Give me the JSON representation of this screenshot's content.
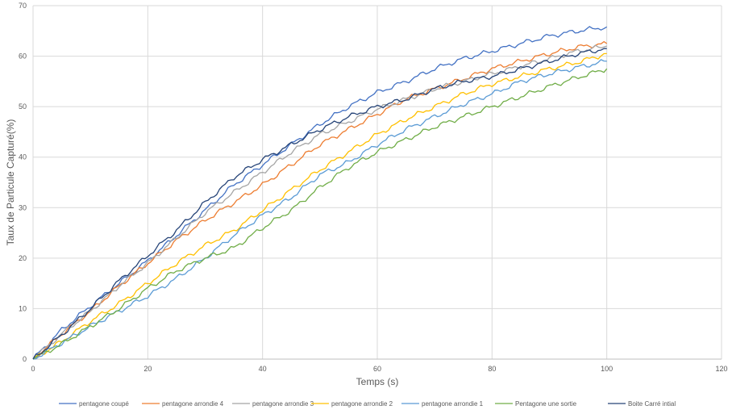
{
  "chart_data": {
    "type": "line",
    "title": "",
    "xlabel": "Temps (s)",
    "ylabel": "Taux de Particule Capturé(%)",
    "xlim": [
      0,
      120
    ],
    "ylim": [
      0,
      70
    ],
    "xticks": [
      0,
      20,
      40,
      60,
      80,
      100,
      120
    ],
    "yticks": [
      0,
      10,
      20,
      30,
      40,
      50,
      60,
      70
    ],
    "grid": true,
    "legend_position": "bottom",
    "x": [
      0,
      5,
      10,
      15,
      20,
      25,
      30,
      35,
      40,
      45,
      50,
      55,
      60,
      65,
      70,
      75,
      80,
      85,
      90,
      95,
      100
    ],
    "series": [
      {
        "name": "pentagone coupé",
        "color": "#4472c4",
        "values": [
          0,
          5.8,
          10.5,
          15,
          19.5,
          24.5,
          29.5,
          34.5,
          38.5,
          42.5,
          46.5,
          50,
          52.8,
          55,
          57.5,
          59.5,
          61,
          62.5,
          64,
          65,
          65.8
        ]
      },
      {
        "name": "pentagone  arrondie 4",
        "color": "#ed7d31",
        "values": [
          0,
          5,
          9.5,
          14.5,
          19,
          23.5,
          27.5,
          31,
          34.5,
          38.5,
          42.5,
          45.5,
          48.5,
          51.5,
          53.5,
          55.5,
          57.5,
          59,
          60.5,
          61.8,
          62.5
        ]
      },
      {
        "name": "pentagone arrondie 3",
        "color": "#a5a5a5",
        "values": [
          0,
          5,
          9.5,
          14.5,
          19,
          24,
          29,
          33,
          37,
          41,
          44.5,
          47,
          49.5,
          51.5,
          53.5,
          55,
          56.5,
          58,
          59.5,
          61,
          62
        ]
      },
      {
        "name": "pentagone arrondie 2",
        "color": "#ffc000",
        "values": [
          0,
          3.5,
          7.5,
          11,
          15,
          19,
          22.5,
          25.5,
          29.5,
          33.5,
          37.5,
          41,
          44.5,
          47.5,
          50,
          52.5,
          54.5,
          56,
          57.5,
          58.8,
          60.5
        ]
      },
      {
        "name": "pentagone arrondie 1",
        "color": "#5b9bd5",
        "values": [
          0,
          3.2,
          6.5,
          9.5,
          12.5,
          16,
          20,
          24.5,
          28.5,
          32,
          36.5,
          39,
          42.5,
          45.5,
          48,
          50.5,
          52.5,
          55,
          56.5,
          57.8,
          59
        ]
      },
      {
        "name": "Pentagone une sortie",
        "color": "#70ad47",
        "values": [
          0,
          3,
          6.5,
          10,
          14,
          17.5,
          20,
          22,
          26,
          29.5,
          34,
          38,
          41,
          43.5,
          46,
          48,
          50,
          52,
          54,
          55.8,
          57.5
        ]
      },
      {
        "name": "Boite Carré intial",
        "color": "#264478",
        "values": [
          0,
          4.8,
          10,
          15.5,
          20.5,
          25.5,
          31,
          36,
          39.5,
          42.5,
          45.5,
          48,
          50,
          51.5,
          53.5,
          55,
          56,
          57.5,
          59,
          60.5,
          61.5
        ]
      }
    ]
  }
}
